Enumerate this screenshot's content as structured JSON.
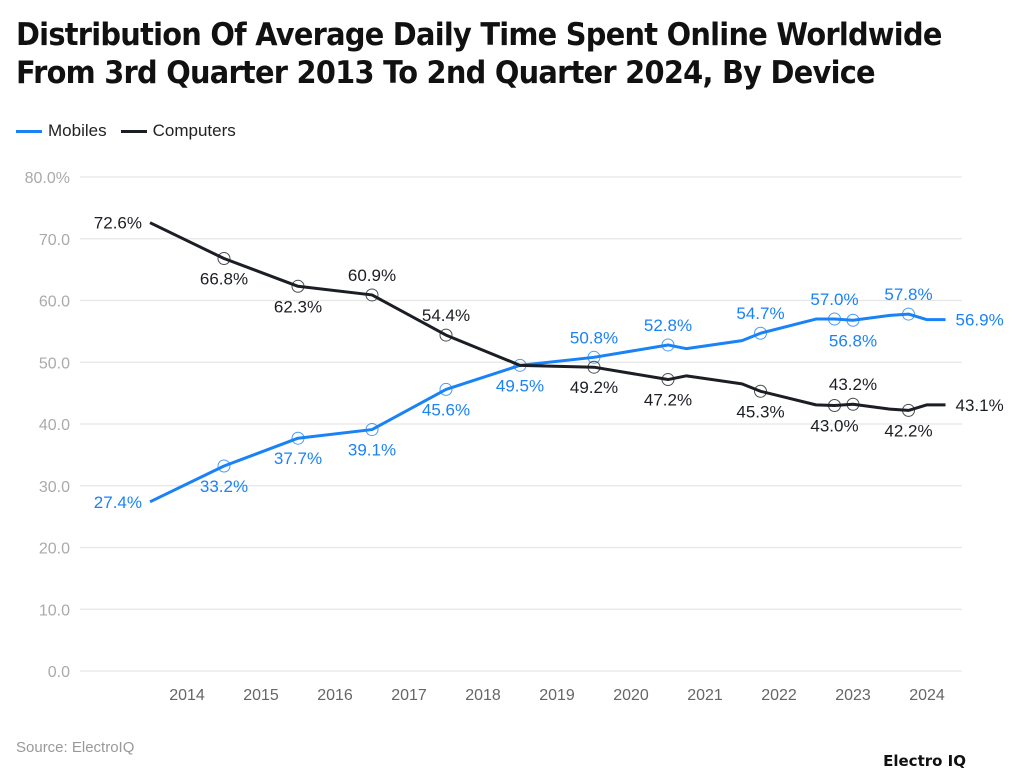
{
  "chart_data": {
    "type": "line",
    "title": "Distribution Of Average Daily Time Spent Online Worldwide From 3rd Quarter 2013 To 2nd Quarter 2024, By Device",
    "xlabel": "",
    "ylabel": "",
    "ylim": [
      0,
      80
    ],
    "xlim": [
      2013,
      2024.5
    ],
    "grid": true,
    "legend_position": "top-left",
    "y_ticks": [
      "0.0",
      "10.0",
      "20.0",
      "30.0",
      "40.0",
      "50.0",
      "60.0",
      "70.0",
      "80.0%"
    ],
    "x_ticks": [
      "2014",
      "2015",
      "2016",
      "2017",
      "2018",
      "2019",
      "2020",
      "2021",
      "2022",
      "2023",
      "2024"
    ],
    "x": [
      2013.5,
      2014.5,
      2015.5,
      2016.5,
      2017.5,
      2018.5,
      2019.5,
      2020.5,
      2020.75,
      2021.5,
      2021.75,
      2022.5,
      2022.75,
      2023.0,
      2023.5,
      2023.75,
      2024.0,
      2024.25
    ],
    "series": [
      {
        "name": "Mobiles",
        "color": "#1a82f7",
        "values": [
          27.4,
          33.2,
          37.7,
          39.1,
          45.6,
          49.5,
          50.8,
          52.8,
          52.2,
          53.5,
          54.7,
          57.0,
          57.0,
          56.8,
          57.6,
          57.8,
          56.9,
          56.9
        ],
        "labels": [
          "27.4%",
          "33.2%",
          "37.7%",
          "39.1%",
          "45.6%",
          "49.5%",
          "50.8%",
          "52.8%",
          null,
          null,
          "54.7%",
          null,
          "57.0%",
          "56.8%",
          null,
          "57.8%",
          null,
          "56.9%"
        ]
      },
      {
        "name": "Computers",
        "color": "#1b1e24",
        "values": [
          72.6,
          66.8,
          62.3,
          60.9,
          54.4,
          49.5,
          49.2,
          47.2,
          47.8,
          46.5,
          45.3,
          43.1,
          43.0,
          43.2,
          42.4,
          42.2,
          43.1,
          43.1
        ],
        "labels": [
          "72.6%",
          "66.8%",
          "62.3%",
          "60.9%",
          "54.4%",
          null,
          "49.2%",
          "47.2%",
          null,
          null,
          "45.3%",
          null,
          "43.0%",
          "43.2%",
          null,
          "42.2%",
          null,
          "43.1%"
        ]
      }
    ]
  },
  "footer": {
    "source": "Source: ElectroIQ",
    "logo": "Electro IQ"
  }
}
